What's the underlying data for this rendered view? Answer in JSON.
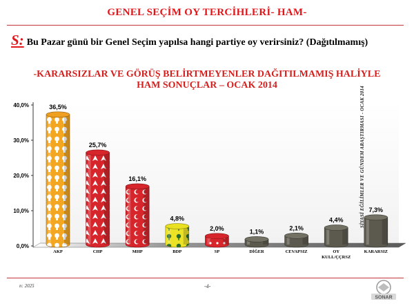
{
  "header": {
    "title": "GENEL SEÇİM OY TERCİHLERİ- HAM-"
  },
  "question": {
    "marker": "S:",
    "text": "Bu Pazar günü bir Genel Seçim yapılsa hangi partiye oy verirsiniz? (Dağıtılmamış)"
  },
  "subtitle": {
    "line1": "-KARARSIZLAR VE GÖRÜŞ BELİRTMEYENLER DAĞITILMAMIŞ HALİYLE",
    "line2": "HAM SONUÇLAR – OCAK 2014"
  },
  "side_note": "SİYASİ EĞİLİMLER VE GÜNDEM ARAŞTIRMASI - OCAK 2014",
  "footer": {
    "sample": "n: 2025",
    "page": "-4-",
    "logo_text": "SONAR"
  },
  "chart_data": {
    "type": "bar",
    "categories": [
      "AKP",
      "CHP",
      "MHP",
      "BDP",
      "SP",
      "DİĞER",
      "CEVAPSIZ",
      "OY KULL/ÇÇRSZ",
      "KARARSIZ"
    ],
    "category_lines": [
      [
        "AKP"
      ],
      [
        "CHP"
      ],
      [
        "MHP"
      ],
      [
        "BDP"
      ],
      [
        "SP"
      ],
      [
        "DİĞER"
      ],
      [
        "CEVAPSIZ"
      ],
      [
        "OY",
        "KULL/ÇÇRSZ"
      ],
      [
        "KARARSIZ"
      ]
    ],
    "values": [
      36.5,
      25.7,
      16.1,
      4.8,
      2.0,
      1.1,
      2.1,
      4.4,
      7.3
    ],
    "value_labels": [
      "36,5%",
      "25,7%",
      "16,1%",
      "4,8%",
      "2,0%",
      "1,1%",
      "2,1%",
      "4,4%",
      "7,3%"
    ],
    "y_ticks": [
      0,
      10,
      20,
      30,
      40
    ],
    "y_tick_labels": [
      "0,0%",
      "10,0%",
      "20,0%",
      "30,0%",
      "40,0%"
    ],
    "ylim": [
      0,
      40
    ],
    "grid": false,
    "legend": "none",
    "colors": [
      "#f0a020",
      "#d6252b",
      "#d6252b",
      "#e8e020",
      "#d6252b",
      "#5c5a4f",
      "#5c5a4f",
      "#5c5a4f",
      "#5c5a4f"
    ],
    "fill_patterns": [
      "bulb",
      "arrows",
      "crescents",
      "tree",
      "sp",
      "plain",
      "plain",
      "plain",
      "plain"
    ]
  }
}
